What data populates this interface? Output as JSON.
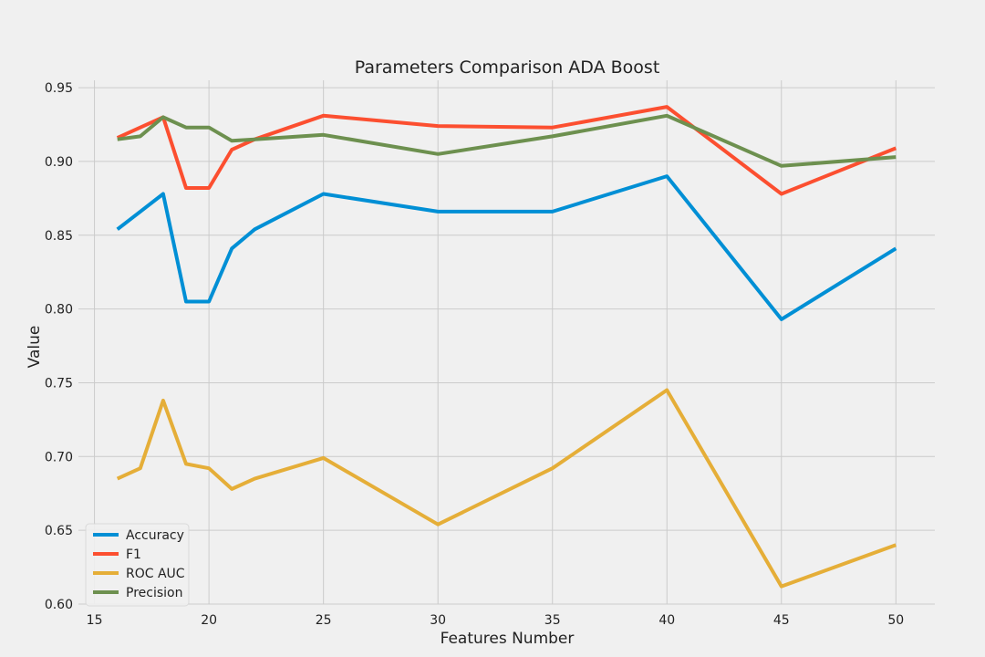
{
  "chart_data": {
    "type": "line",
    "title": "Parameters Comparison ADA Boost",
    "xlabel": "Features Number",
    "ylabel": "Value",
    "xlim": [
      14.3,
      51.7
    ],
    "ylim": [
      0.6,
      0.955
    ],
    "x_ticks": [
      15,
      20,
      25,
      30,
      35,
      40,
      45,
      50
    ],
    "x_tick_labels": [
      "15",
      "20",
      "25",
      "30",
      "35",
      "40",
      "45",
      "50"
    ],
    "y_ticks": [
      0.6,
      0.65,
      0.7,
      0.75,
      0.8,
      0.85,
      0.9,
      0.95
    ],
    "y_tick_labels": [
      "0.60",
      "0.65",
      "0.70",
      "0.75",
      "0.80",
      "0.85",
      "0.90",
      "0.95"
    ],
    "grid": true,
    "legend_position": "lower-left",
    "x": [
      16,
      17,
      18,
      19,
      20,
      21,
      22,
      25,
      30,
      35,
      40,
      45,
      50
    ],
    "series": [
      {
        "name": "Accuracy",
        "color": "#008fd5",
        "values": [
          0.854,
          0.866,
          0.878,
          0.805,
          0.805,
          0.841,
          0.854,
          0.878,
          0.866,
          0.866,
          0.89,
          0.793,
          0.841
        ]
      },
      {
        "name": "F1",
        "color": "#fc4f30",
        "values": [
          0.916,
          0.923,
          0.93,
          0.882,
          0.882,
          0.908,
          0.915,
          0.931,
          0.924,
          0.923,
          0.937,
          0.878,
          0.909
        ]
      },
      {
        "name": "ROC AUC",
        "color": "#e5ae38",
        "values": [
          0.685,
          0.692,
          0.738,
          0.695,
          0.692,
          0.678,
          0.685,
          0.699,
          0.654,
          0.692,
          0.745,
          0.612,
          0.64
        ]
      },
      {
        "name": "Precision",
        "color": "#6d904f",
        "values": [
          0.915,
          0.917,
          0.93,
          0.923,
          0.923,
          0.914,
          0.915,
          0.918,
          0.905,
          0.917,
          0.931,
          0.897,
          0.903
        ]
      }
    ]
  }
}
